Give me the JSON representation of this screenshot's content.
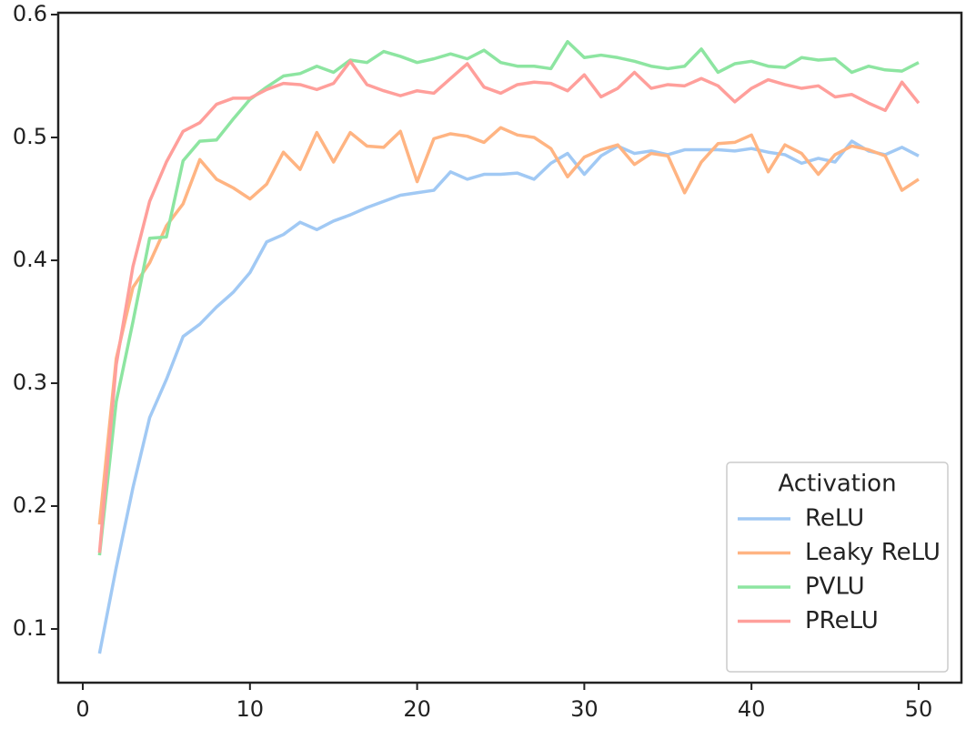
{
  "chart_data": {
    "type": "line",
    "x": [
      1,
      2,
      3,
      4,
      5,
      6,
      7,
      8,
      9,
      10,
      11,
      12,
      13,
      14,
      15,
      16,
      17,
      18,
      19,
      20,
      21,
      22,
      23,
      24,
      25,
      26,
      27,
      28,
      29,
      30,
      31,
      32,
      33,
      34,
      35,
      36,
      37,
      38,
      39,
      40,
      41,
      42,
      43,
      44,
      45,
      46,
      47,
      48,
      49,
      50
    ],
    "series": [
      {
        "name": "ReLU",
        "color": "#a1c9f4",
        "values": [
          0.08,
          0.15,
          0.215,
          0.272,
          0.303,
          0.338,
          0.348,
          0.362,
          0.374,
          0.39,
          0.415,
          0.421,
          0.431,
          0.425,
          0.432,
          0.437,
          0.443,
          0.448,
          0.453,
          0.455,
          0.457,
          0.472,
          0.466,
          0.47,
          0.47,
          0.471,
          0.466,
          0.479,
          0.487,
          0.47,
          0.485,
          0.493,
          0.487,
          0.489,
          0.486,
          0.49,
          0.49,
          0.49,
          0.489,
          0.491,
          0.488,
          0.486,
          0.479,
          0.483,
          0.48,
          0.497,
          0.489,
          0.486,
          0.492,
          0.485
        ]
      },
      {
        "name": "Leaky ReLU",
        "color": "#ffb482",
        "values": [
          0.185,
          0.32,
          0.378,
          0.398,
          0.428,
          0.446,
          0.482,
          0.466,
          0.459,
          0.45,
          0.462,
          0.488,
          0.474,
          0.504,
          0.48,
          0.504,
          0.493,
          0.492,
          0.505,
          0.464,
          0.499,
          0.503,
          0.501,
          0.496,
          0.508,
          0.502,
          0.5,
          0.491,
          0.468,
          0.484,
          0.49,
          0.494,
          0.478,
          0.487,
          0.485,
          0.455,
          0.48,
          0.495,
          0.496,
          0.502,
          0.472,
          0.494,
          0.487,
          0.47,
          0.486,
          0.493,
          0.49,
          0.485,
          0.457,
          0.466
        ]
      },
      {
        "name": "PVLU",
        "color": "#8de5a1",
        "values": [
          0.16,
          0.285,
          0.35,
          0.418,
          0.419,
          0.481,
          0.497,
          0.498,
          0.515,
          0.531,
          0.541,
          0.55,
          0.552,
          0.558,
          0.553,
          0.563,
          0.561,
          0.57,
          0.566,
          0.561,
          0.564,
          0.568,
          0.564,
          0.571,
          0.561,
          0.558,
          0.558,
          0.556,
          0.578,
          0.565,
          0.567,
          0.565,
          0.562,
          0.558,
          0.556,
          0.558,
          0.572,
          0.553,
          0.56,
          0.562,
          0.558,
          0.557,
          0.565,
          0.563,
          0.564,
          0.553,
          0.558,
          0.555,
          0.554,
          0.561
        ]
      },
      {
        "name": "PReLU",
        "color": "#ff9f9b",
        "values": [
          0.162,
          0.315,
          0.395,
          0.448,
          0.48,
          0.505,
          0.512,
          0.527,
          0.532,
          0.532,
          0.539,
          0.544,
          0.543,
          0.539,
          0.544,
          0.562,
          0.543,
          0.538,
          0.534,
          0.538,
          0.536,
          0.548,
          0.56,
          0.541,
          0.536,
          0.543,
          0.545,
          0.544,
          0.538,
          0.551,
          0.533,
          0.54,
          0.553,
          0.54,
          0.543,
          0.542,
          0.548,
          0.542,
          0.529,
          0.54,
          0.547,
          0.543,
          0.54,
          0.542,
          0.533,
          0.535,
          0.528,
          0.522,
          0.545,
          0.528
        ]
      }
    ],
    "xlim": [
      -1.47,
      52.56
    ],
    "ylim": [
      0.0563,
      0.6015
    ],
    "xticks": [
      0,
      10,
      20,
      30,
      40,
      50
    ],
    "yticks": [
      0.1,
      0.2,
      0.3,
      0.4,
      0.5,
      0.6
    ],
    "legend_title": "Activation",
    "legend_position": "lower right"
  }
}
